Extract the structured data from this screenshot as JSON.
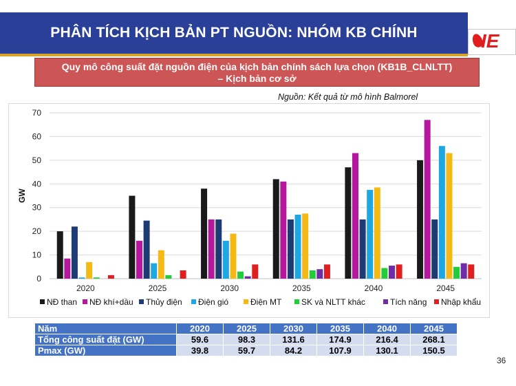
{
  "slide": {
    "title": "PHÂN TÍCH KỊCH BẢN PT NGUỒN: NHÓM KB CHÍNH",
    "logo_text": "IE",
    "subtitle_line1": "Quy mô công suất đặt nguồn điện của kịch bản chính sách lựa chọn (KB1B_CLNLTT)",
    "subtitle_line2": "–  Kịch bản cơ sở",
    "source": "Nguồn: Kết quả từ mô hình Balmorel",
    "page_number": "36"
  },
  "chart_data": {
    "type": "bar",
    "ylabel": "GW",
    "xlabel": "",
    "ylim": [
      0,
      70
    ],
    "yticks": [
      0,
      10,
      20,
      30,
      40,
      50,
      60,
      70
    ],
    "grid": true,
    "legend_position": "bottom",
    "categories": [
      "2020",
      "2025",
      "2030",
      "2035",
      "2040",
      "2045"
    ],
    "series": [
      {
        "name": "NĐ than",
        "color": "#1a1a1a",
        "values": [
          20,
          35,
          38,
          42,
          47,
          50
        ]
      },
      {
        "name": "NĐ khí+dầu",
        "color": "#b5179e",
        "values": [
          8.5,
          16,
          25,
          41,
          53,
          67
        ]
      },
      {
        "name": "Thủy điện",
        "color": "#1f3b73",
        "values": [
          22,
          24.5,
          25,
          25,
          25,
          25
        ]
      },
      {
        "name": "Điện gió",
        "color": "#1ea7e1",
        "values": [
          0.5,
          6.5,
          16,
          27,
          37.5,
          56
        ]
      },
      {
        "name": "Điện MT",
        "color": "#f5b915",
        "values": [
          7,
          12,
          19,
          27.5,
          38.5,
          53
        ]
      },
      {
        "name": "SK và NLTT khác",
        "color": "#22cc3a",
        "values": [
          0.5,
          1.5,
          3,
          3.5,
          4.5,
          5
        ]
      },
      {
        "name": "Tích năng",
        "color": "#6f2da8",
        "values": [
          0,
          0,
          1,
          4,
          5.5,
          6.5
        ]
      },
      {
        "name": "Nhập khẩu",
        "color": "#e02020",
        "values": [
          1.5,
          3.5,
          6,
          6,
          6,
          6
        ]
      }
    ]
  },
  "table": {
    "header_label": "Năm",
    "years": [
      "2020",
      "2025",
      "2030",
      "2035",
      "2040",
      "2045"
    ],
    "rows": [
      {
        "label": "Tổng công suất đặt (GW)",
        "values": [
          "59.6",
          "98.3",
          "131.6",
          "174.9",
          "216.4",
          "268.1"
        ]
      },
      {
        "label": "Pmax (GW)",
        "values": [
          "39.8",
          "59.7",
          "84.2",
          "107.9",
          "130.1",
          "150.5"
        ]
      }
    ]
  }
}
